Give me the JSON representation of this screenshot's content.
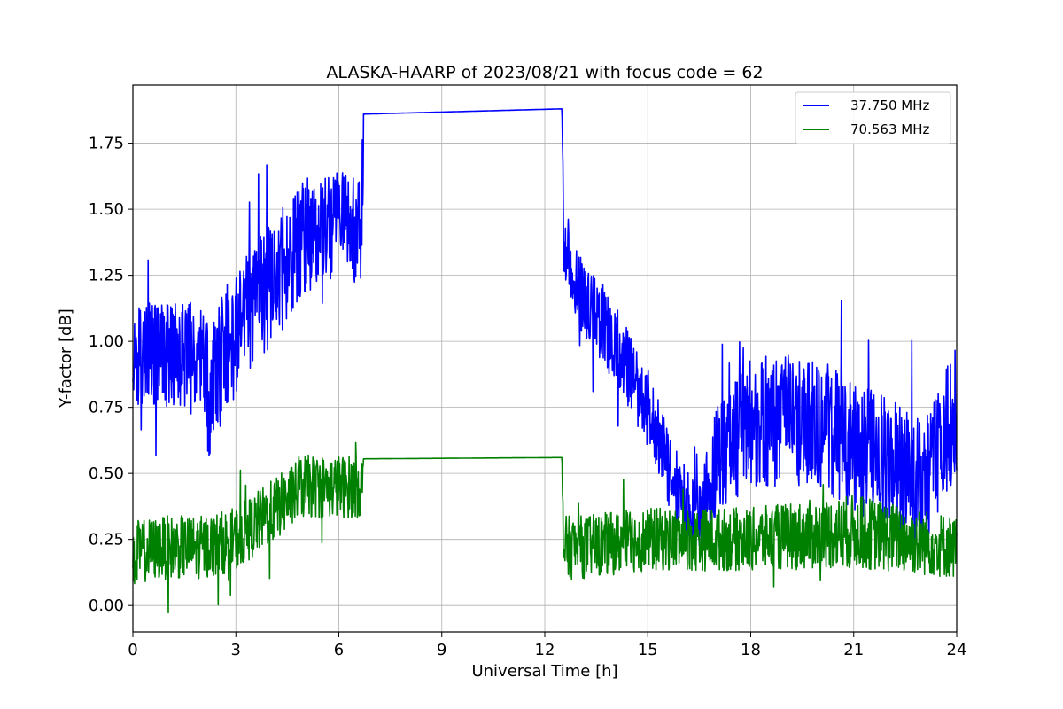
{
  "chart_data": {
    "type": "line",
    "title": "ALASKA-HAARP of 2023/08/21 with focus code = 62",
    "xlabel": "Universal Time [h]",
    "ylabel": "Y-factor [dB]",
    "xlim": [
      0,
      24
    ],
    "ylim": [
      -0.1,
      1.97
    ],
    "xticks": [
      0,
      3,
      6,
      9,
      12,
      15,
      18,
      21,
      24
    ],
    "xtick_labels": [
      "0",
      "3",
      "6",
      "9",
      "12",
      "15",
      "18",
      "21",
      "24"
    ],
    "yticks": [
      0.0,
      0.25,
      0.5,
      0.75,
      1.0,
      1.25,
      1.5,
      1.75
    ],
    "ytick_labels": [
      "0.00",
      "0.25",
      "0.50",
      "0.75",
      "1.00",
      "1.25",
      "1.50",
      "1.75"
    ],
    "grid": true,
    "legend": "top-right",
    "series": [
      {
        "name": "37.750 MHz",
        "color": "#0000ff",
        "x": [
          0,
          1,
          2,
          2.2,
          3,
          4,
          5,
          6,
          6.7,
          6.72,
          12.5,
          12.55,
          13,
          14,
          15,
          15.5,
          16,
          16.5,
          17,
          18,
          19,
          20,
          21,
          22,
          23,
          24
        ],
        "y": [
          0.95,
          0.95,
          0.95,
          0.8,
          1.05,
          1.2,
          1.4,
          1.45,
          1.4,
          1.86,
          1.88,
          1.4,
          1.2,
          1.0,
          0.75,
          0.55,
          0.4,
          0.3,
          0.55,
          0.7,
          0.7,
          0.7,
          0.6,
          0.55,
          0.45,
          0.75
        ],
        "band": [
          0.2,
          0.2,
          0.2,
          0.25,
          0.25,
          0.25,
          0.22,
          0.2,
          0.2,
          0,
          0,
          0.15,
          0.15,
          0.15,
          0.15,
          0.15,
          0.15,
          0.15,
          0.2,
          0.25,
          0.25,
          0.25,
          0.25,
          0.25,
          0.25,
          0.25
        ]
      },
      {
        "name": "70.563 MHz",
        "color": "#008000",
        "x": [
          0,
          1,
          2,
          3,
          4,
          5,
          6,
          6.7,
          6.72,
          12.5,
          12.55,
          13,
          15,
          18,
          21,
          24
        ],
        "y": [
          0.2,
          0.22,
          0.22,
          0.25,
          0.35,
          0.45,
          0.45,
          0.45,
          0.555,
          0.56,
          0.22,
          0.22,
          0.25,
          0.25,
          0.28,
          0.22
        ],
        "band": [
          0.12,
          0.12,
          0.12,
          0.12,
          0.12,
          0.12,
          0.12,
          0.12,
          0,
          0,
          0.12,
          0.12,
          0.12,
          0.12,
          0.14,
          0.12
        ]
      }
    ]
  }
}
